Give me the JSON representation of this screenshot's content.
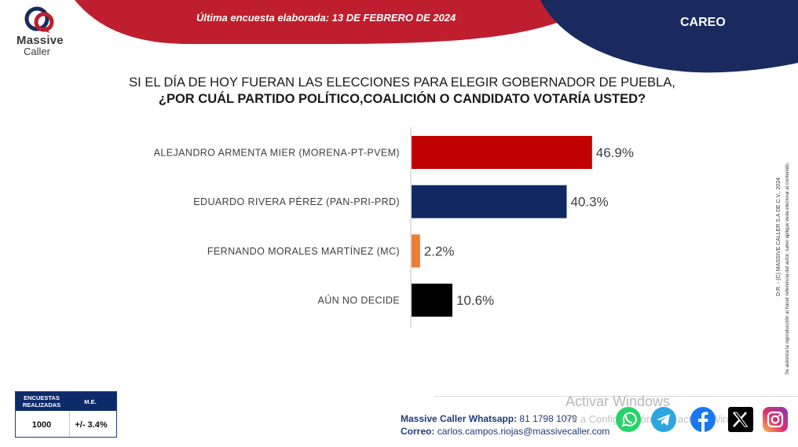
{
  "brand": {
    "name_line1": "Massive",
    "name_line2": "Caller"
  },
  "header": {
    "date_text": "Última encuesta elaborada: 13 DE FEBRERO DE 2024",
    "section_label": "CAREO",
    "colors": {
      "red": "#be1e2d",
      "navy": "#1b2a5e"
    }
  },
  "question": {
    "line1": "SI EL DÍA DE HOY FUERAN LAS ELECCIONES PARA ELEGIR GOBERNADOR DE PUEBLA,",
    "line2": "¿POR CUÁL PARTIDO POLÍTICO,COALICIÓN  O CANDIDATO  VOTARÍA USTED?"
  },
  "chart_data": {
    "type": "bar",
    "orientation": "horizontal",
    "categories": [
      "ALEJANDRO ARMENTA MIER (MORENA-PT-PVEM)",
      "EDUARDO RIVERA PÉREZ (PAN-PRI-PRD)",
      "FERNANDO MORALES MARTÍNEZ (MC)",
      "AÚN NO DECIDE"
    ],
    "values": [
      46.9,
      40.3,
      2.2,
      10.6
    ],
    "value_labels": [
      "46.9%",
      "40.3%",
      "2.2%",
      "10.6%"
    ],
    "colors": [
      "#c00000",
      "#0f2a63",
      "#ed7d31",
      "#000000"
    ],
    "xlim": [
      0,
      100
    ],
    "title": "",
    "xlabel": "",
    "ylabel": ""
  },
  "copyright": {
    "line1": "D.R. - (C) MASSIVE CALLER S.A DE C.V., 2024",
    "line2": "Se autoriza la reproducción al hacer referencia del autor, salvo aplique veda electoral al contenido."
  },
  "stats": {
    "header_surveys": "ENCUESTAS REALIZADAS",
    "header_margin": "M.E.",
    "surveys": "1000",
    "margin": "+/- 3.4%"
  },
  "contact": {
    "whatsapp_label": "Massive Caller Whatsapp:",
    "whatsapp_number": "81 1798 1079",
    "email_label": "Correo:",
    "email": "carlos.campos.riojas@massivecaller.com"
  },
  "watermark": {
    "line1": "Activar Windows",
    "line2": "Ve a Configuración para activar Windows."
  },
  "social": [
    {
      "icon": "whatsapp-icon",
      "color": "#25d366"
    },
    {
      "icon": "telegram-icon",
      "color": "#2ca5e0"
    },
    {
      "icon": "facebook-icon",
      "color": "#1877f2"
    },
    {
      "icon": "x-icon",
      "color": "#000000"
    },
    {
      "icon": "instagram-icon",
      "color": "#d6249f"
    }
  ]
}
